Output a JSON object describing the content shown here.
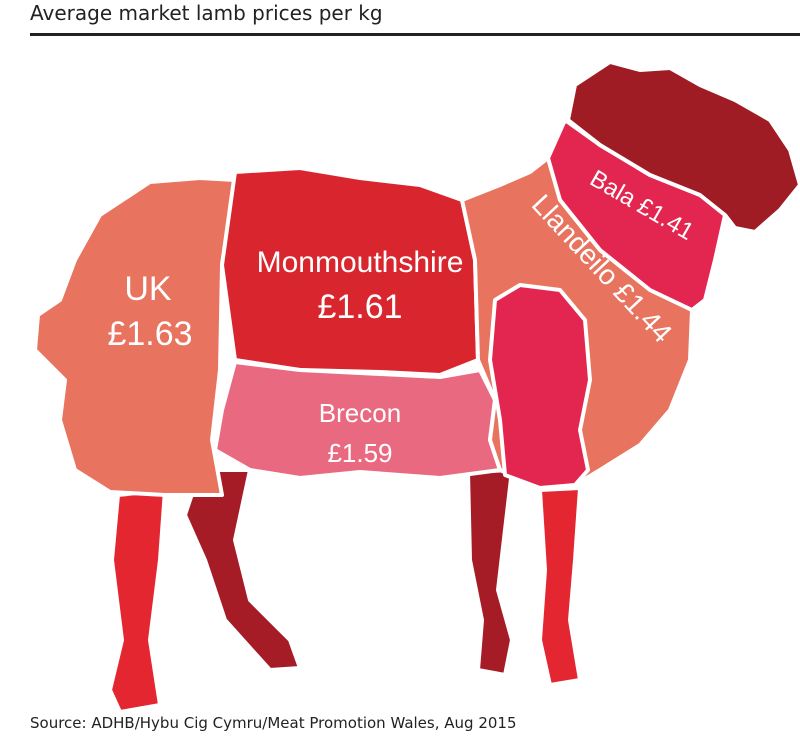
{
  "title": "Average market lamb prices per kg",
  "regions": [
    {
      "name": "UK",
      "price": "£1.63"
    },
    {
      "name": "Monmouthshire",
      "price": "£1.61"
    },
    {
      "name": "Brecon",
      "price": "£1.59"
    },
    {
      "name": "Llandeilo",
      "price": "£1.44"
    },
    {
      "name": "Bala",
      "price": "£1.41"
    }
  ],
  "source": "Source: ADHB/Hybu Cig Cymru/Meat Promotion Wales, Aug 2015"
}
